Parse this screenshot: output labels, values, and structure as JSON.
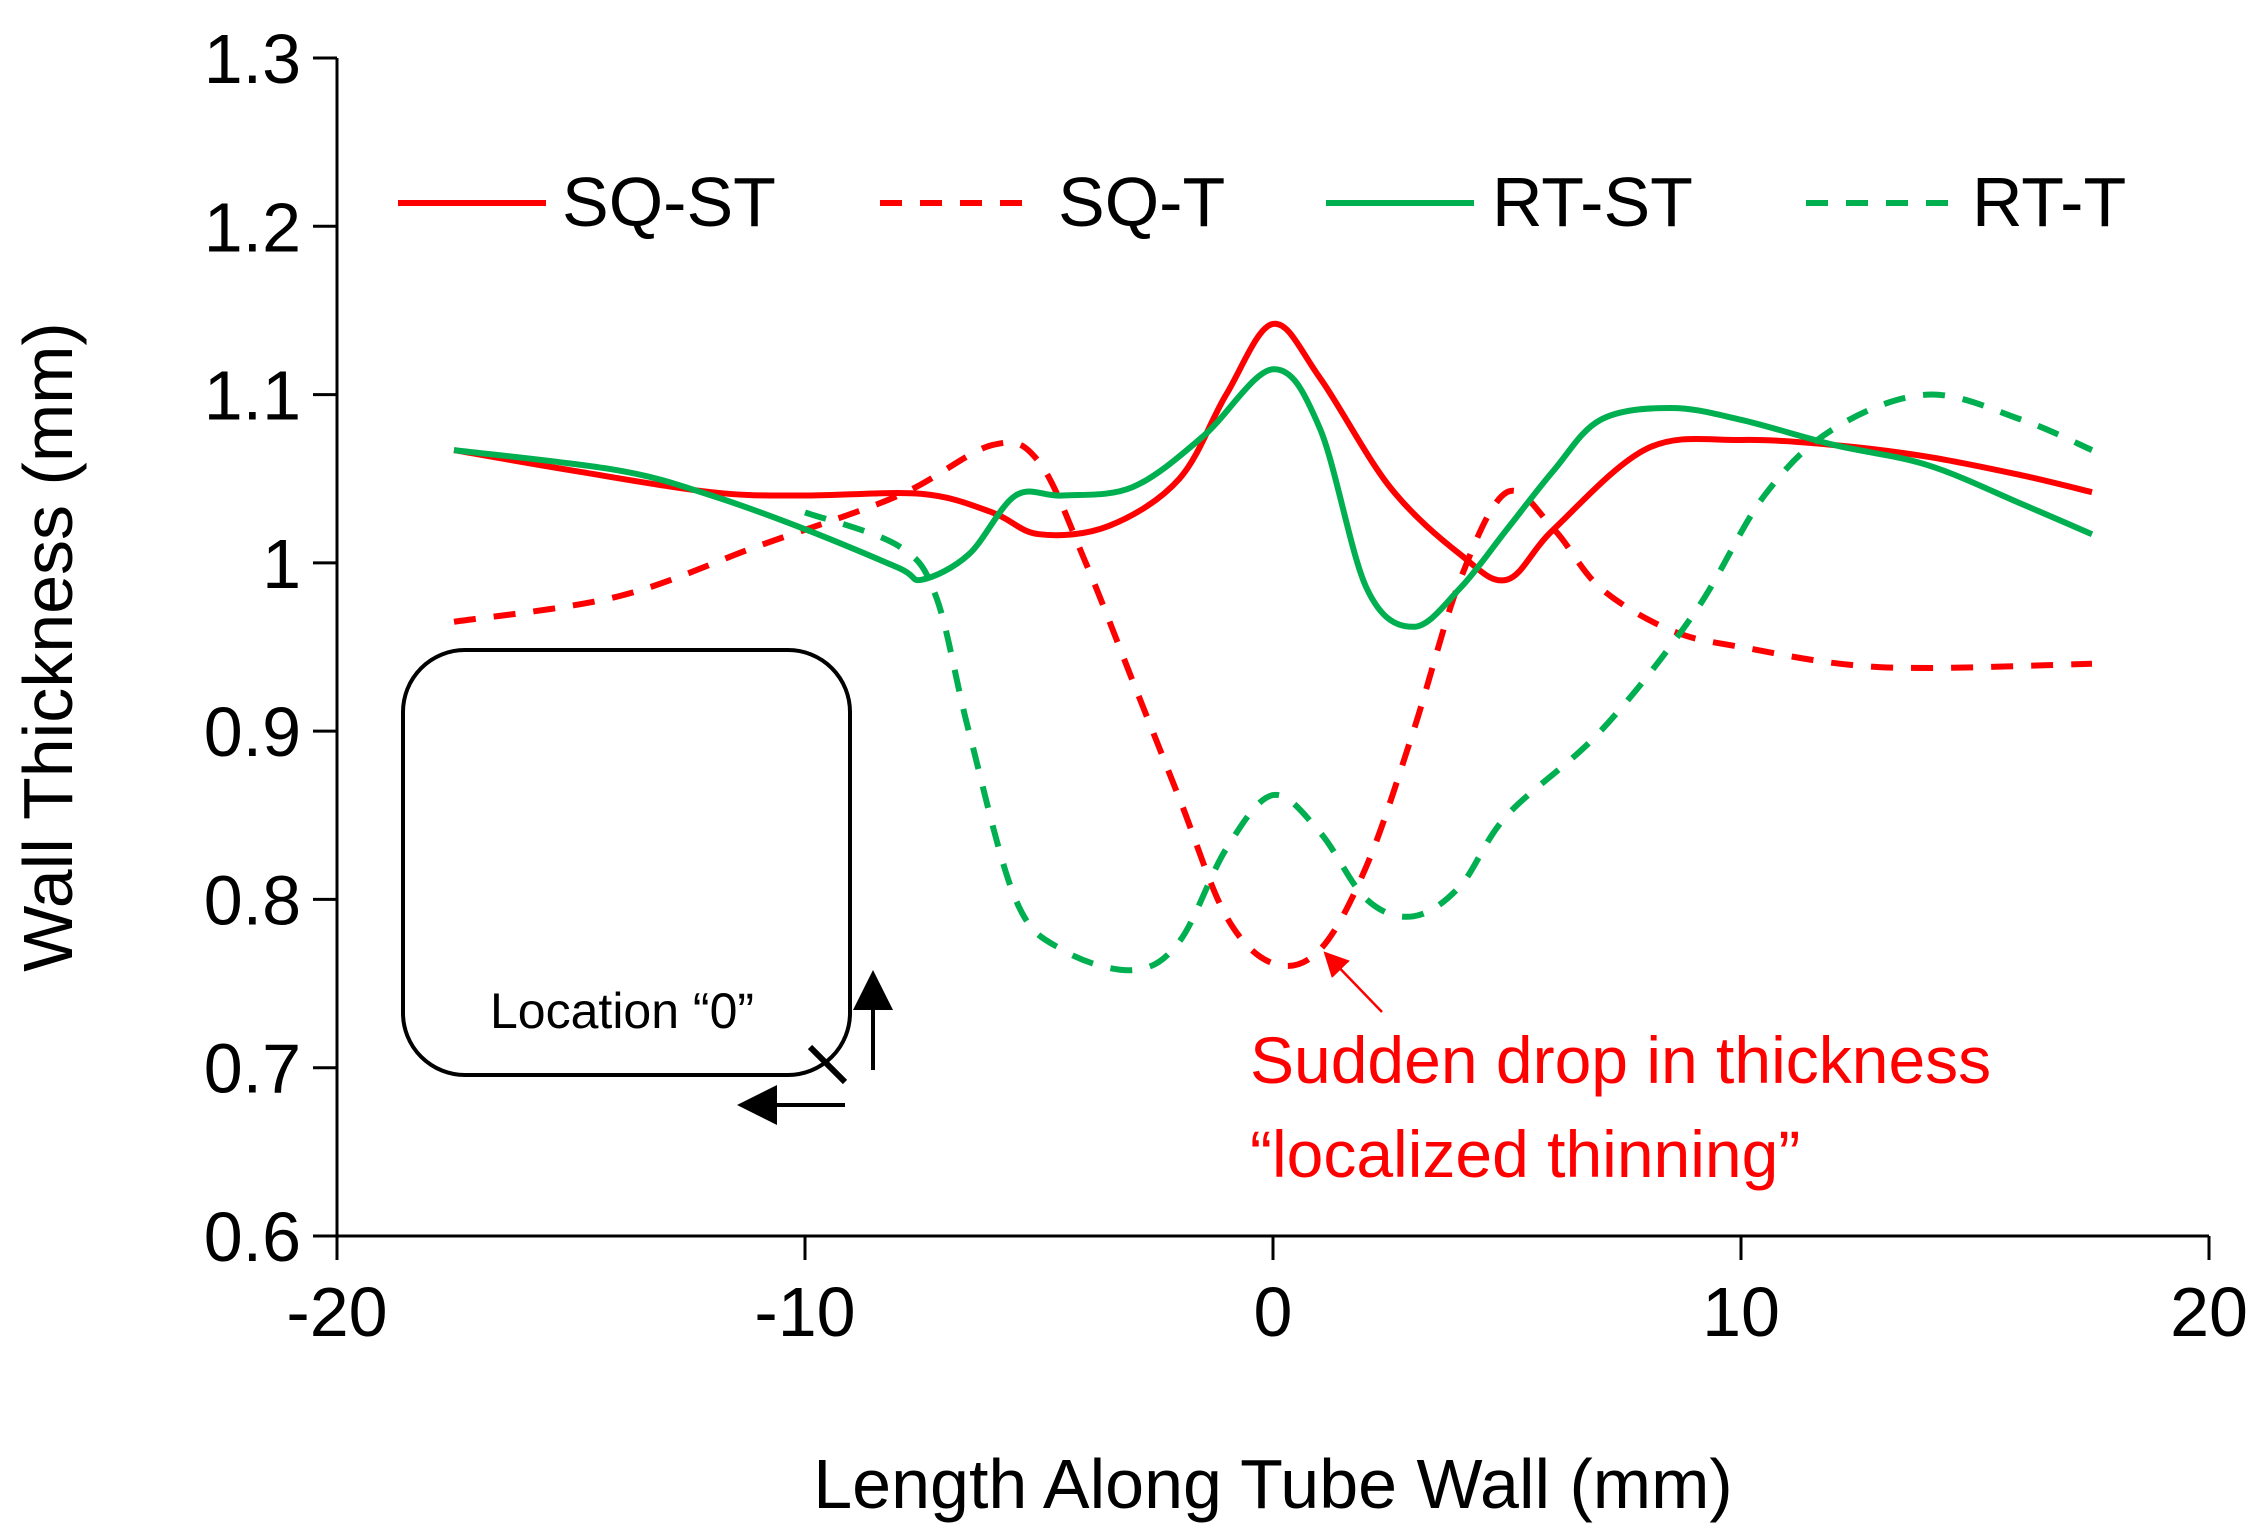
{
  "chart_data": {
    "type": "line",
    "title": "",
    "xlabel": "Length Along Tube Wall (mm)",
    "ylabel": "Wall Thickness (mm)",
    "xlim": [
      -20,
      20
    ],
    "ylim": [
      0.6,
      1.3
    ],
    "xticks": [
      -20,
      -10,
      0,
      10,
      20
    ],
    "yticks": [
      0.6,
      0.7,
      0.8,
      0.9,
      1.0,
      1.1,
      1.2,
      1.3
    ],
    "xtick_labels": [
      "-20",
      "-10",
      "0",
      "10",
      "20"
    ],
    "ytick_labels": [
      "0.6",
      "0.7",
      "0.8",
      "0.9",
      "1",
      "1.1",
      "1.2",
      "1.3"
    ],
    "legend_position": "top",
    "series": [
      {
        "name": "SQ-ST",
        "color": "#ff0000",
        "dashed": false,
        "x": [
          -17.5,
          -15,
          -12,
          -10,
          -7.5,
          -6,
          -5,
          -3.5,
          -2,
          -1,
          0,
          1,
          2.5,
          4,
          5,
          6,
          8,
          10,
          12,
          14,
          16,
          17.5
        ],
        "y": [
          1.067,
          1.055,
          1.042,
          1.04,
          1.041,
          1.03,
          1.017,
          1.022,
          1.05,
          1.1,
          1.142,
          1.11,
          1.045,
          1.005,
          0.99,
          1.02,
          1.068,
          1.073,
          1.07,
          1.063,
          1.052,
          1.042
        ]
      },
      {
        "name": "SQ-T",
        "color": "#ff0000",
        "dashed": true,
        "x": [
          -17.5,
          -14,
          -11,
          -8,
          -6,
          -5,
          -4,
          -3,
          -2,
          -1,
          0,
          1,
          2,
          3,
          4,
          5,
          6,
          7,
          8.5,
          10,
          13,
          17.5
        ],
        "y": [
          0.965,
          0.98,
          1.01,
          1.04,
          1.07,
          1.06,
          1.0,
          0.93,
          0.86,
          0.79,
          0.762,
          0.77,
          0.82,
          0.9,
          0.99,
          1.042,
          1.02,
          0.985,
          0.96,
          0.95,
          0.938,
          0.94
        ]
      },
      {
        "name": "RT-ST",
        "color": "#00b050",
        "dashed": false,
        "x": [
          -17.5,
          -14,
          -12,
          -10,
          -8,
          -7.5,
          -6.5,
          -5.5,
          -4.5,
          -3,
          -1.5,
          0,
          1,
          2,
          3,
          4,
          5,
          6,
          7,
          8.5,
          10,
          12,
          14,
          16,
          17.5
        ],
        "y": [
          1.067,
          1.055,
          1.04,
          1.02,
          0.997,
          0.99,
          1.005,
          1.04,
          1.04,
          1.045,
          1.075,
          1.115,
          1.08,
          0.985,
          0.962,
          0.985,
          1.02,
          1.055,
          1.085,
          1.092,
          1.085,
          1.07,
          1.058,
          1.035,
          1.017
        ]
      },
      {
        "name": "RT-T",
        "color": "#00b050",
        "dashed": true,
        "x": [
          -10,
          -8,
          -7.2,
          -6.5,
          -5.5,
          -4.5,
          -3,
          -2,
          -1,
          0,
          1,
          2,
          3,
          4,
          5,
          7,
          9,
          10.5,
          12,
          14,
          16,
          17.5
        ],
        "y": [
          1.03,
          1.01,
          0.98,
          0.9,
          0.8,
          0.77,
          0.758,
          0.775,
          0.83,
          0.862,
          0.84,
          0.8,
          0.79,
          0.808,
          0.85,
          0.9,
          0.97,
          1.04,
          1.08,
          1.1,
          1.085,
          1.067
        ]
      }
    ],
    "annotations": {
      "location_label": "Location “0”",
      "drop_line1": "Sudden drop in thickness",
      "drop_line2": "“localized thinning”"
    }
  }
}
